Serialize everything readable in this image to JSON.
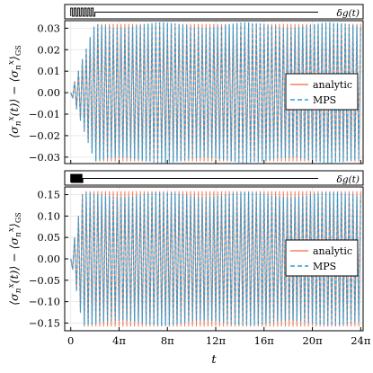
{
  "chart_data": [
    {
      "type": "line",
      "panel": "top",
      "ylabel": "⟨σⁿˣ(t)⟩ − ⟨σⁿˣ⟩GS",
      "xlabel": "",
      "xlim_over_pi": [
        -0.5,
        24.2
      ],
      "ylim": [
        -0.033,
        0.0335
      ],
      "yticks": [
        -0.03,
        -0.02,
        -0.01,
        0.0,
        0.01,
        0.02,
        0.03
      ],
      "ytick_labels": [
        "−0.03",
        "−0.02",
        "−0.01",
        "0.00",
        "0.01",
        "0.02",
        "0.03"
      ],
      "grid": true,
      "legend": "right",
      "drive_label": "δg(t)",
      "drive_end_over_pi": 2,
      "series": [
        {
          "name": "analytic",
          "color": "#f08060",
          "style": "solid",
          "amplitude": 0.032,
          "ramp_end_over_pi": 2.0
        },
        {
          "name": "MPS",
          "color": "#2a9fd6",
          "style": "dashed",
          "amplitude": 0.0315,
          "ramp_end_over_pi": 2.0
        }
      ]
    },
    {
      "type": "line",
      "panel": "bottom",
      "ylabel": "⟨σⁿˣ(t)⟩ − ⟨σⁿˣ⟩GS",
      "xlabel": "t",
      "xlim_over_pi": [
        -0.5,
        24.2
      ],
      "ylim": [
        -0.168,
        0.168
      ],
      "yticks": [
        -0.15,
        -0.1,
        -0.05,
        0.0,
        0.05,
        0.1,
        0.15
      ],
      "ytick_labels": [
        "−0.15",
        "−0.10",
        "−0.05",
        "0.00",
        "0.05",
        "0.10",
        "0.15"
      ],
      "xticks_over_pi": [
        0,
        4,
        8,
        12,
        16,
        20,
        24
      ],
      "xtick_labels": [
        "0",
        "4π",
        "8π",
        "12π",
        "16π",
        "20π",
        "24π"
      ],
      "grid": true,
      "legend": "right",
      "drive_label": "δg(t)",
      "drive_end_over_pi": 1,
      "series": [
        {
          "name": "analytic",
          "color": "#f08060",
          "style": "solid",
          "amplitude": 0.158,
          "ramp_end_over_pi": 1.0
        },
        {
          "name": "MPS",
          "color": "#2a9fd6",
          "style": "dashed",
          "amplitude": 0.15,
          "ramp_end_over_pi": 1.0
        }
      ]
    }
  ]
}
